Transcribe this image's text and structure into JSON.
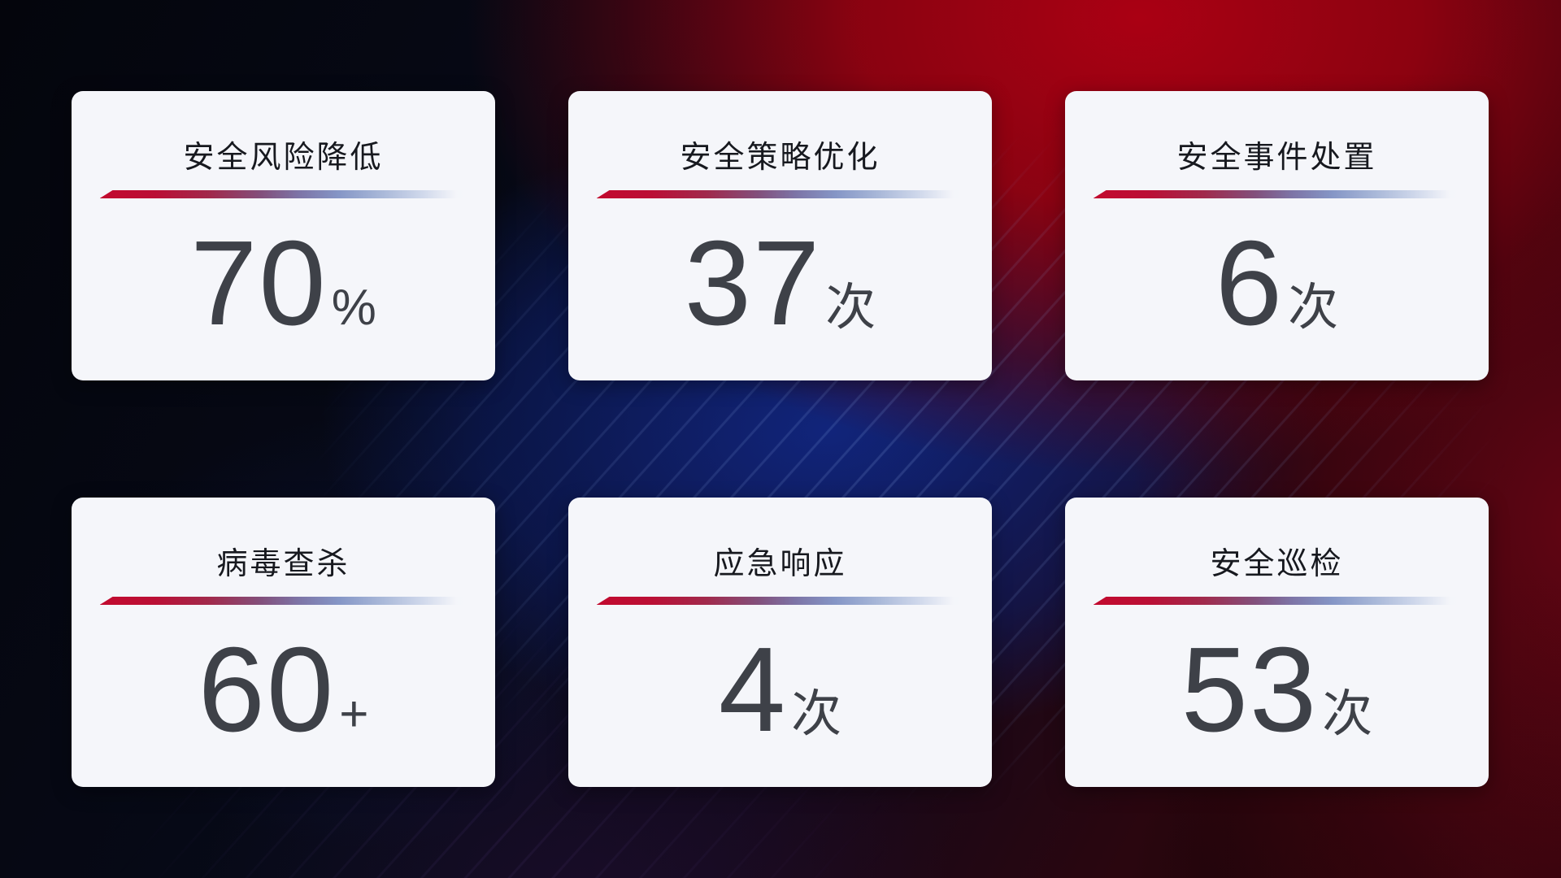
{
  "cards": [
    {
      "title": "安全风险降低",
      "value": "70",
      "unit": "%"
    },
    {
      "title": "安全策略优化",
      "value": "37",
      "unit": "次"
    },
    {
      "title": "安全事件处置",
      "value": "6",
      "unit": "次"
    },
    {
      "title": "病毒查杀",
      "value": "60",
      "unit": "+"
    },
    {
      "title": "应急响应",
      "value": "4",
      "unit": "次"
    },
    {
      "title": "安全巡检",
      "value": "53",
      "unit": "次"
    }
  ],
  "colors": {
    "card_background": "#f5f6fa",
    "title_text": "#17191f",
    "value_text": "#3e4148",
    "divider_red": "#c20a2e",
    "divider_blue": "#8596c6",
    "background_red": "#a00013",
    "background_blue": "#112680",
    "background_dark": "#05060d"
  }
}
